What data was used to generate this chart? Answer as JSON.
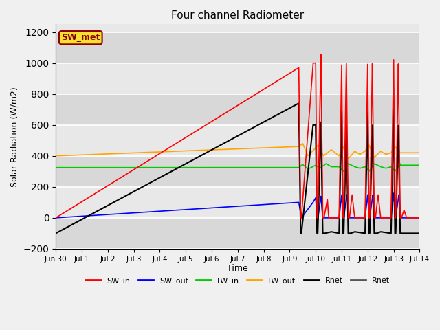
{
  "title": "Four channel Radiometer",
  "xlabel": "Time",
  "ylabel": "Solar Radiation (W/m2)",
  "annotation_text": "SW_met",
  "annotation_bg": "#f5e030",
  "annotation_fg": "#8b0000",
  "ylim": [
    -200,
    1250
  ],
  "xlim_days": [
    0,
    14
  ],
  "tick_labels": [
    "Jun 30",
    "Jul 1",
    "Jul 2",
    "Jul 3",
    "Jul 4",
    "Jul 5",
    "Jul 6",
    "Jul 7",
    "Jul 8",
    "Jul 9",
    "Jul 10",
    "Jul 11",
    "Jul 12",
    "Jul 13",
    "Jul 14"
  ],
  "colors": {
    "SW_in": "#ff0000",
    "SW_out": "#0000ff",
    "LW_in": "#00cc00",
    "LW_out": "#ffa500",
    "Rnet_black": "#000000",
    "Rnet_dark": "#555555"
  },
  "bg_light": "#e8e8e8",
  "bg_dark": "#d0d0d0",
  "grid_color": "#ffffff"
}
